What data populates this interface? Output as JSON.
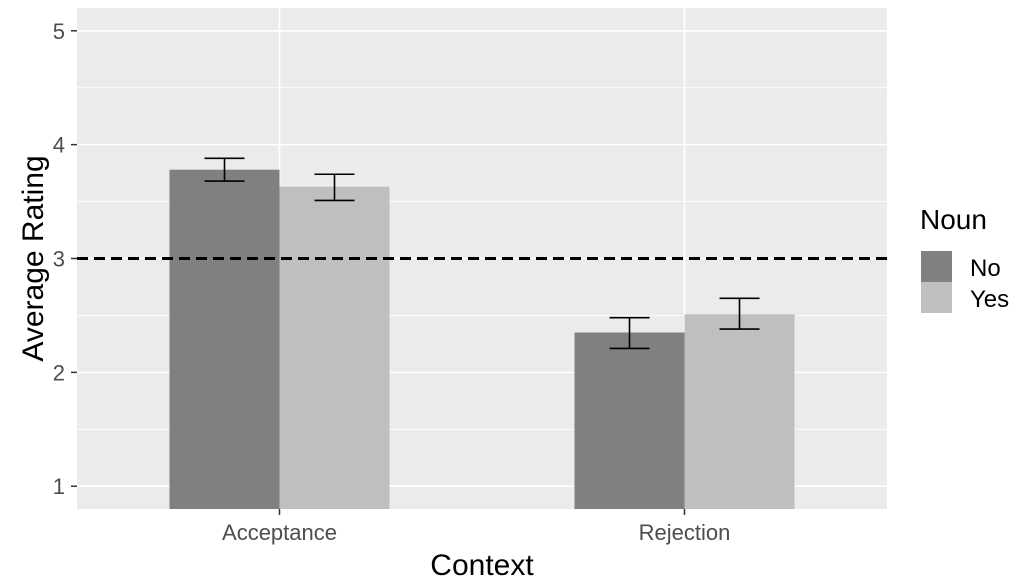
{
  "chart_data": {
    "type": "bar",
    "title": "",
    "xlabel": "Context",
    "ylabel": "Average Rating",
    "categories": [
      "Acceptance",
      "Rejection"
    ],
    "series": [
      {
        "name": "No",
        "color": "#808080",
        "values": [
          3.78,
          2.35
        ],
        "error_low": [
          3.68,
          2.21
        ],
        "error_high": [
          3.88,
          2.48
        ]
      },
      {
        "name": "Yes",
        "color": "#bfbfbf",
        "values": [
          3.63,
          2.51
        ],
        "error_low": [
          3.51,
          2.38
        ],
        "error_high": [
          3.74,
          2.65
        ]
      }
    ],
    "ylim": [
      0.8,
      5.2
    ],
    "yticks": [
      "1",
      "2",
      "3",
      "4",
      "5"
    ],
    "reference_line": {
      "y": 3,
      "style": "dashed",
      "color": "#000000"
    },
    "legend": {
      "title": "Noun",
      "position": "right"
    },
    "grid": true,
    "panel_color": "#ebebeb"
  }
}
